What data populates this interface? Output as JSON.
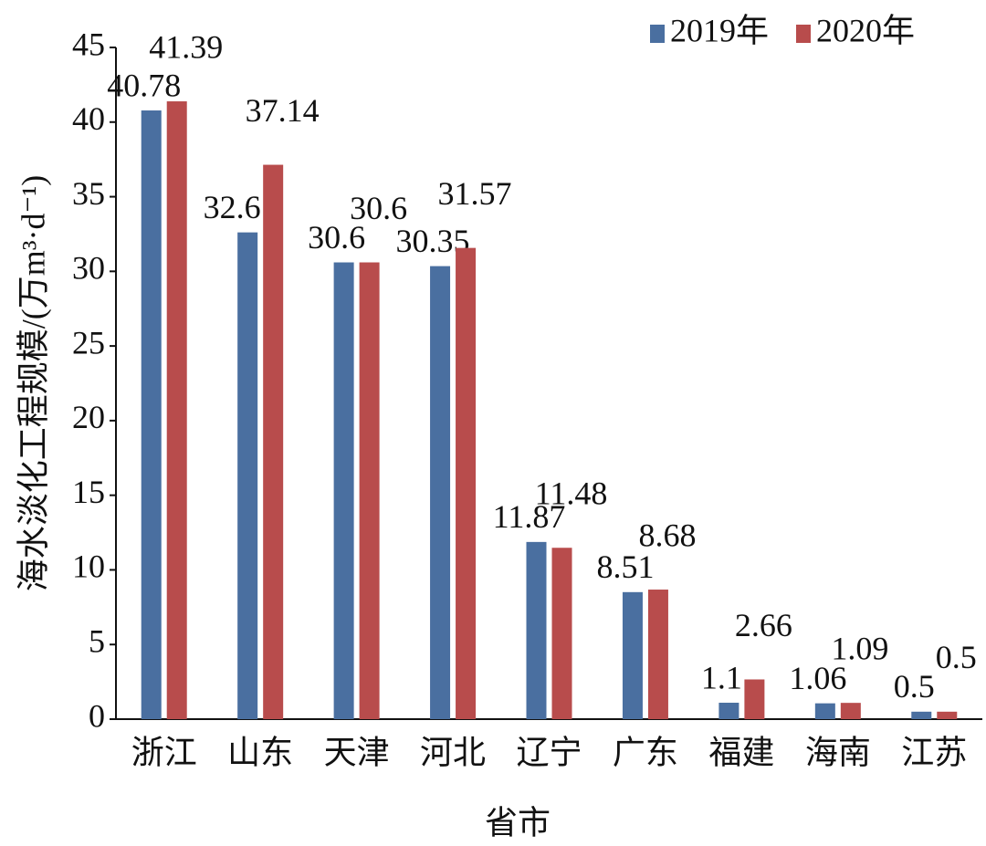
{
  "chart_data": {
    "type": "bar",
    "y_label": "海水淡化工程规模/(万m³·d⁻¹)",
    "x_label": "省市",
    "categories": [
      "浙江",
      "山东",
      "天津",
      "河北",
      "辽宁",
      "广东",
      "福建",
      "海南",
      "江苏"
    ],
    "series": [
      {
        "name": "2019年",
        "color": "#4a6fa0",
        "values": [
          40.78,
          32.61,
          30.6,
          30.35,
          11.87,
          8.51,
          1.1,
          1.06,
          0.5
        ]
      },
      {
        "name": "2020年",
        "color": "#b84c4c",
        "values": [
          41.39,
          37.14,
          30.6,
          31.57,
          11.48,
          8.68,
          2.66,
          1.09,
          0.5
        ]
      }
    ],
    "ylim": [
      0,
      45
    ],
    "yticks": [
      0,
      5,
      10,
      15,
      20,
      25,
      30,
      35,
      40,
      45
    ],
    "grid": false,
    "legend": "top-right"
  }
}
